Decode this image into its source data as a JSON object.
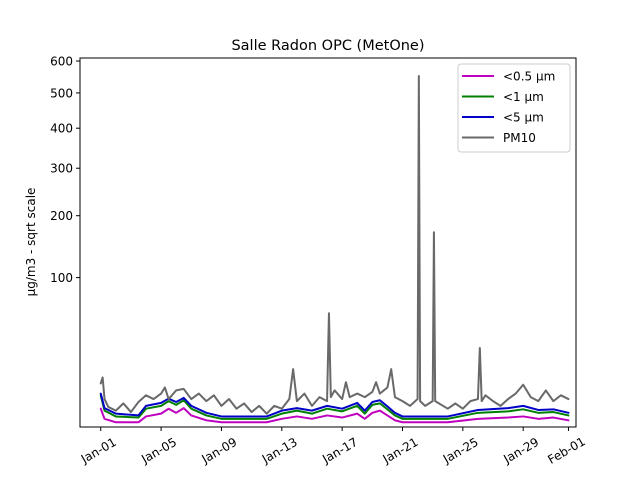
{
  "chart_data": {
    "type": "line",
    "title": "Salle Radon OPC (MetOne)",
    "xlabel": "",
    "ylabel": "µg/m3 - sqrt scale",
    "y_scale": "sqrt",
    "ylim": [
      0,
      610
    ],
    "xlim": [
      "2025-12-30T15:00",
      "2026-02-01T12:00"
    ],
    "y_ticks": [
      100,
      200,
      300,
      400,
      500,
      600
    ],
    "x_ticks": [
      {
        "date": "2026-01-01",
        "label": "Jan-01"
      },
      {
        "date": "2026-01-05",
        "label": "Jan-05"
      },
      {
        "date": "2026-01-09",
        "label": "Jan-09"
      },
      {
        "date": "2026-01-13",
        "label": "Jan-13"
      },
      {
        "date": "2026-01-17",
        "label": "Jan-17"
      },
      {
        "date": "2026-01-21",
        "label": "Jan-21"
      },
      {
        "date": "2026-01-25",
        "label": "Jan-25"
      },
      {
        "date": "2026-01-29",
        "label": "Jan-29"
      },
      {
        "date": "2026-02-01",
        "label": "Feb-01"
      }
    ],
    "legend_position": "top-right",
    "grid": false,
    "series": [
      {
        "name": "<0.5 µm",
        "color": "#bf00bf",
        "points": [
          [
            "2026-01-01T00:00",
            1.5
          ],
          [
            "2026-01-01T06:00",
            0.3
          ],
          [
            "2026-01-02T00:00",
            0.1
          ],
          [
            "2026-01-03T12:00",
            0.1
          ],
          [
            "2026-01-04T00:00",
            0.5
          ],
          [
            "2026-01-05T00:00",
            0.8
          ],
          [
            "2026-01-05T12:00",
            1.5
          ],
          [
            "2026-01-06T00:00",
            0.9
          ],
          [
            "2026-01-06T12:00",
            1.6
          ],
          [
            "2026-01-07T00:00",
            0.6
          ],
          [
            "2026-01-08T00:00",
            0.2
          ],
          [
            "2026-01-09T00:00",
            0.1
          ],
          [
            "2026-01-12T00:00",
            0.1
          ],
          [
            "2026-01-13T00:00",
            0.3
          ],
          [
            "2026-01-14T00:00",
            0.5
          ],
          [
            "2026-01-15T00:00",
            0.3
          ],
          [
            "2026-01-16T00:00",
            0.6
          ],
          [
            "2026-01-17T00:00",
            0.4
          ],
          [
            "2026-01-18T00:00",
            0.8
          ],
          [
            "2026-01-18T12:00",
            0.3
          ],
          [
            "2026-01-19T00:00",
            0.9
          ],
          [
            "2026-01-19T12:00",
            1.2
          ],
          [
            "2026-01-20T00:00",
            0.6
          ],
          [
            "2026-01-20T12:00",
            0.2
          ],
          [
            "2026-01-21T00:00",
            0.1
          ],
          [
            "2026-01-24T00:00",
            0.1
          ],
          [
            "2026-01-26T00:00",
            0.3
          ],
          [
            "2026-01-28T00:00",
            0.4
          ],
          [
            "2026-01-29T00:00",
            0.5
          ],
          [
            "2026-01-30T00:00",
            0.3
          ],
          [
            "2026-01-31T00:00",
            0.4
          ],
          [
            "2026-02-01T00:00",
            0.2
          ]
        ]
      },
      {
        "name": "<1 µm",
        "color": "#008000",
        "points": [
          [
            "2026-01-01T00:00",
            4.5
          ],
          [
            "2026-01-01T06:00",
            1.2
          ],
          [
            "2026-01-02T00:00",
            0.5
          ],
          [
            "2026-01-03T12:00",
            0.4
          ],
          [
            "2026-01-04T00:00",
            1.5
          ],
          [
            "2026-01-05T00:00",
            2.0
          ],
          [
            "2026-01-05T12:00",
            3.0
          ],
          [
            "2026-01-06T00:00",
            2.2
          ],
          [
            "2026-01-06T12:00",
            3.2
          ],
          [
            "2026-01-07T00:00",
            1.5
          ],
          [
            "2026-01-08T00:00",
            0.6
          ],
          [
            "2026-01-09T00:00",
            0.3
          ],
          [
            "2026-01-12T00:00",
            0.3
          ],
          [
            "2026-01-13T00:00",
            0.8
          ],
          [
            "2026-01-14T00:00",
            1.2
          ],
          [
            "2026-01-15T00:00",
            0.8
          ],
          [
            "2026-01-16T00:00",
            1.5
          ],
          [
            "2026-01-17T00:00",
            1.1
          ],
          [
            "2026-01-18T00:00",
            2.0
          ],
          [
            "2026-01-18T12:00",
            0.8
          ],
          [
            "2026-01-19T00:00",
            2.2
          ],
          [
            "2026-01-19T12:00",
            2.5
          ],
          [
            "2026-01-20T00:00",
            1.4
          ],
          [
            "2026-01-20T12:00",
            0.6
          ],
          [
            "2026-01-21T00:00",
            0.3
          ],
          [
            "2026-01-24T00:00",
            0.3
          ],
          [
            "2026-01-26T00:00",
            0.9
          ],
          [
            "2026-01-28T00:00",
            1.1
          ],
          [
            "2026-01-29T00:00",
            1.4
          ],
          [
            "2026-01-30T00:00",
            0.9
          ],
          [
            "2026-01-31T00:00",
            1.0
          ],
          [
            "2026-02-01T00:00",
            0.6
          ]
        ]
      },
      {
        "name": "<5 µm",
        "color": "#0000c8",
        "points": [
          [
            "2026-01-01T00:00",
            5.0
          ],
          [
            "2026-01-01T06:00",
            1.6
          ],
          [
            "2026-01-02T00:00",
            0.8
          ],
          [
            "2026-01-03T12:00",
            0.6
          ],
          [
            "2026-01-04T00:00",
            2.0
          ],
          [
            "2026-01-05T00:00",
            2.6
          ],
          [
            "2026-01-05T12:00",
            3.6
          ],
          [
            "2026-01-06T00:00",
            2.8
          ],
          [
            "2026-01-06T12:00",
            3.8
          ],
          [
            "2026-01-07T00:00",
            2.0
          ],
          [
            "2026-01-08T00:00",
            0.9
          ],
          [
            "2026-01-09T00:00",
            0.5
          ],
          [
            "2026-01-12T00:00",
            0.5
          ],
          [
            "2026-01-13T00:00",
            1.2
          ],
          [
            "2026-01-14T00:00",
            1.6
          ],
          [
            "2026-01-15T00:00",
            1.2
          ],
          [
            "2026-01-16T00:00",
            2.0
          ],
          [
            "2026-01-17T00:00",
            1.5
          ],
          [
            "2026-01-18T00:00",
            2.6
          ],
          [
            "2026-01-18T12:00",
            1.2
          ],
          [
            "2026-01-19T00:00",
            2.8
          ],
          [
            "2026-01-19T12:00",
            3.2
          ],
          [
            "2026-01-20T00:00",
            1.9
          ],
          [
            "2026-01-20T12:00",
            0.9
          ],
          [
            "2026-01-21T00:00",
            0.5
          ],
          [
            "2026-01-24T00:00",
            0.5
          ],
          [
            "2026-01-26T00:00",
            1.3
          ],
          [
            "2026-01-28T00:00",
            1.6
          ],
          [
            "2026-01-29T00:00",
            2.0
          ],
          [
            "2026-01-30T00:00",
            1.3
          ],
          [
            "2026-01-31T00:00",
            1.4
          ],
          [
            "2026-02-01T00:00",
            0.9
          ]
        ]
      },
      {
        "name": "PM10",
        "color": "#696969",
        "points": [
          [
            "2026-01-01T00:00",
            8.5
          ],
          [
            "2026-01-01T03:00",
            11.0
          ],
          [
            "2026-01-01T06:00",
            3.5
          ],
          [
            "2026-01-01T12:00",
            1.8
          ],
          [
            "2026-01-02T00:00",
            1.2
          ],
          [
            "2026-01-02T12:00",
            2.5
          ],
          [
            "2026-01-03T00:00",
            1.0
          ],
          [
            "2026-01-03T12:00",
            2.8
          ],
          [
            "2026-01-04T00:00",
            4.5
          ],
          [
            "2026-01-04T12:00",
            3.5
          ],
          [
            "2026-01-05T00:00",
            5.0
          ],
          [
            "2026-01-05T06:00",
            7.0
          ],
          [
            "2026-01-05T12:00",
            3.5
          ],
          [
            "2026-01-06T00:00",
            6.0
          ],
          [
            "2026-01-06T12:00",
            6.5
          ],
          [
            "2026-01-07T00:00",
            3.5
          ],
          [
            "2026-01-07T12:00",
            5.0
          ],
          [
            "2026-01-08T00:00",
            3.0
          ],
          [
            "2026-01-08T12:00",
            4.5
          ],
          [
            "2026-01-09T00:00",
            2.0
          ],
          [
            "2026-01-09T12:00",
            3.5
          ],
          [
            "2026-01-10T00:00",
            1.5
          ],
          [
            "2026-01-10T12:00",
            2.5
          ],
          [
            "2026-01-11T00:00",
            1.0
          ],
          [
            "2026-01-11T12:00",
            2.0
          ],
          [
            "2026-01-12T00:00",
            0.8
          ],
          [
            "2026-01-12T12:00",
            2.0
          ],
          [
            "2026-01-13T00:00",
            1.5
          ],
          [
            "2026-01-13T12:00",
            3.5
          ],
          [
            "2026-01-13T18:00",
            15.0
          ],
          [
            "2026-01-14T00:00",
            3.0
          ],
          [
            "2026-01-14T12:00",
            5.0
          ],
          [
            "2026-01-15T00:00",
            2.0
          ],
          [
            "2026-01-15T12:00",
            4.0
          ],
          [
            "2026-01-16T00:00",
            3.0
          ],
          [
            "2026-01-16T03:00",
            58.0
          ],
          [
            "2026-01-16T06:00",
            4.0
          ],
          [
            "2026-01-16T12:00",
            6.0
          ],
          [
            "2026-01-17T00:00",
            3.5
          ],
          [
            "2026-01-17T06:00",
            9.0
          ],
          [
            "2026-01-17T12:00",
            4.0
          ],
          [
            "2026-01-18T00:00",
            5.0
          ],
          [
            "2026-01-18T12:00",
            4.0
          ],
          [
            "2026-01-19T00:00",
            5.5
          ],
          [
            "2026-01-19T06:00",
            9.0
          ],
          [
            "2026-01-19T12:00",
            5.0
          ],
          [
            "2026-01-20T00:00",
            7.0
          ],
          [
            "2026-01-20T06:00",
            15.0
          ],
          [
            "2026-01-20T12:00",
            4.0
          ],
          [
            "2026-01-21T00:00",
            3.0
          ],
          [
            "2026-01-21T12:00",
            2.0
          ],
          [
            "2026-01-22T00:00",
            3.5
          ],
          [
            "2026-01-22T02:00",
            552.0
          ],
          [
            "2026-01-22T04:00",
            3.0
          ],
          [
            "2026-01-22T12:00",
            2.0
          ],
          [
            "2026-01-23T00:00",
            3.0
          ],
          [
            "2026-01-23T02:00",
            170.0
          ],
          [
            "2026-01-23T04:00",
            3.0
          ],
          [
            "2026-01-24T00:00",
            1.5
          ],
          [
            "2026-01-24T12:00",
            2.5
          ],
          [
            "2026-01-25T00:00",
            1.5
          ],
          [
            "2026-01-25T12:00",
            3.0
          ],
          [
            "2026-01-26T00:00",
            3.5
          ],
          [
            "2026-01-26T03:00",
            28.0
          ],
          [
            "2026-01-26T06:00",
            3.0
          ],
          [
            "2026-01-26T12:00",
            4.5
          ],
          [
            "2026-01-27T00:00",
            3.0
          ],
          [
            "2026-01-27T12:00",
            2.0
          ],
          [
            "2026-01-28T00:00",
            3.5
          ],
          [
            "2026-01-28T12:00",
            5.0
          ],
          [
            "2026-01-29T00:00",
            8.0
          ],
          [
            "2026-01-29T12:00",
            4.0
          ],
          [
            "2026-01-30T00:00",
            3.0
          ],
          [
            "2026-01-30T12:00",
            6.0
          ],
          [
            "2026-01-31T00:00",
            3.0
          ],
          [
            "2026-01-31T12:00",
            4.5
          ],
          [
            "2026-02-01T00:00",
            3.5
          ]
        ]
      }
    ]
  }
}
